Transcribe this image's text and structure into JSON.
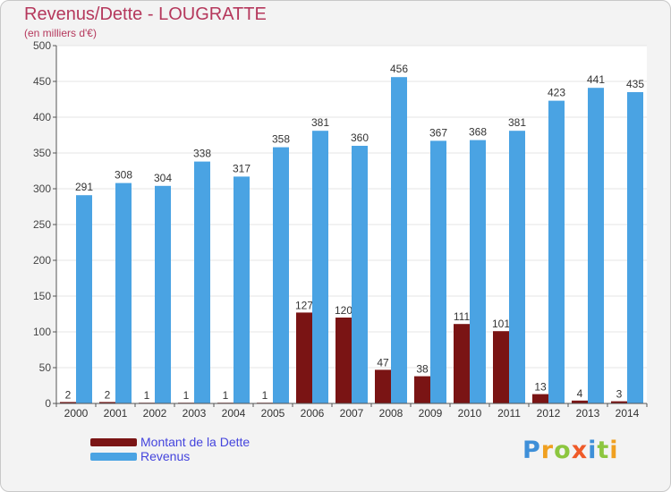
{
  "title": "Revenus/Dette - LOUGRATTE",
  "subtitle": "(en milliers d'€)",
  "brand": {
    "letters": [
      {
        "char": "P",
        "color": "#3e8fd8"
      },
      {
        "char": "r",
        "color": "#f0a020"
      },
      {
        "char": "o",
        "color": "#8cc63f"
      },
      {
        "char": "x",
        "color": "#ef5a28"
      },
      {
        "char": "i",
        "color": "#3e8fd8"
      },
      {
        "char": "t",
        "color": "#8cc63f"
      },
      {
        "char": "i",
        "color": "#f0a020"
      }
    ]
  },
  "legend": {
    "position": "bottom-left",
    "items": [
      {
        "label": "Montant de la Dette",
        "color": "#7a1414"
      },
      {
        "label": "Revenus",
        "color": "#4aa3e3"
      }
    ]
  },
  "chart_data": {
    "type": "bar",
    "categories": [
      "2000",
      "2001",
      "2002",
      "2003",
      "2004",
      "2005",
      "2006",
      "2007",
      "2008",
      "2009",
      "2010",
      "2011",
      "2012",
      "2013",
      "2014"
    ],
    "series": [
      {
        "name": "Montant de la Dette",
        "color": "#7a1414",
        "values": [
          2,
          2,
          1,
          1,
          1,
          1,
          127,
          120,
          47,
          38,
          111,
          101,
          13,
          4,
          3
        ]
      },
      {
        "name": "Revenus",
        "color": "#4aa3e3",
        "values": [
          291,
          308,
          304,
          338,
          317,
          358,
          381,
          360,
          456,
          367,
          368,
          381,
          423,
          441,
          435
        ]
      }
    ],
    "ylim": [
      0,
      500
    ],
    "yticks": [
      0,
      50,
      100,
      150,
      200,
      250,
      300,
      350,
      400,
      450,
      500
    ],
    "grid": true
  }
}
